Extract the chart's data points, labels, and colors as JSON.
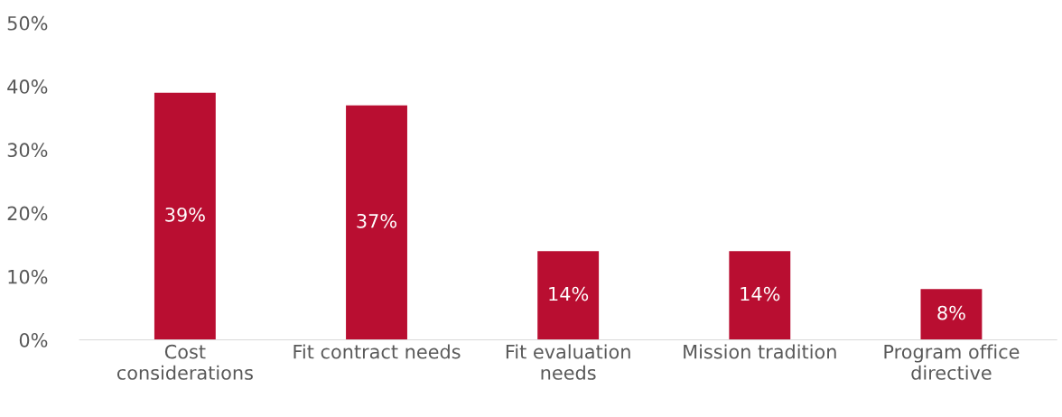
{
  "chart_data": {
    "type": "bar",
    "categories": [
      "Cost\nconsiderations",
      "Fit contract needs",
      "Fit evaluation\nneeds",
      "Mission tradition",
      "Program office\ndirective"
    ],
    "values": [
      39,
      37,
      14,
      14,
      8
    ],
    "value_labels": [
      "39%",
      "37%",
      "14%",
      "14%",
      "8%"
    ],
    "color": "#b90e31",
    "ylim": [
      0,
      50
    ],
    "yticks": [
      {
        "value": 0,
        "label": "0%"
      },
      {
        "value": 10,
        "label": "10%"
      },
      {
        "value": 20,
        "label": "20%"
      },
      {
        "value": 30,
        "label": "30%"
      },
      {
        "value": 40,
        "label": "40%"
      },
      {
        "value": 50,
        "label": "50%"
      }
    ],
    "grid": false,
    "legend": false
  }
}
